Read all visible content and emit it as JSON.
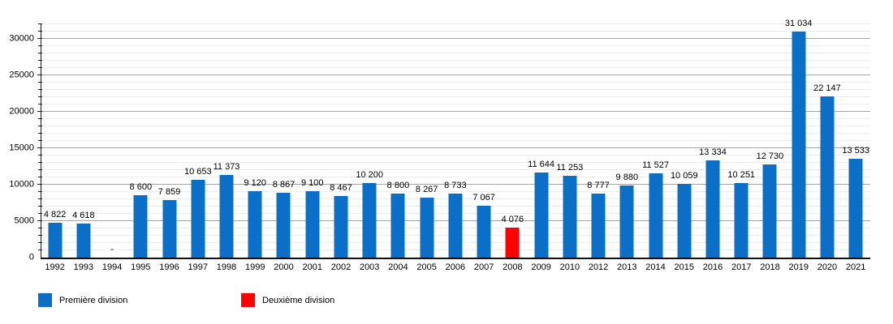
{
  "chart_data": {
    "type": "bar",
    "title": "",
    "xlabel": "",
    "ylabel": "",
    "legend_position": "bottom",
    "grid": true,
    "y_axis": {
      "min": 0,
      "max": 32000,
      "minor_step": 1000,
      "major_step": 5000,
      "tick_labels": [
        "0",
        "5000",
        "10000",
        "15000",
        "20000",
        "25000",
        "30000"
      ]
    },
    "colors": {
      "premiere": "#0b6fc8",
      "deuxieme": "#fe0000",
      "none": "transparent"
    },
    "points": [
      {
        "year": "1992",
        "value": 4822,
        "label": "4 822",
        "division": "premiere"
      },
      {
        "year": "1993",
        "value": 4618,
        "label": "4 618",
        "division": "premiere"
      },
      {
        "year": "1994",
        "value": 0,
        "label": "-",
        "division": "none"
      },
      {
        "year": "1995",
        "value": 8600,
        "label": "8 600",
        "division": "premiere"
      },
      {
        "year": "1996",
        "value": 7859,
        "label": "7 859",
        "division": "premiere"
      },
      {
        "year": "1997",
        "value": 10653,
        "label": "10 653",
        "division": "premiere"
      },
      {
        "year": "1998",
        "value": 11373,
        "label": "11 373",
        "division": "premiere"
      },
      {
        "year": "1999",
        "value": 9120,
        "label": "9 120",
        "division": "premiere"
      },
      {
        "year": "2000",
        "value": 8867,
        "label": "8 867",
        "division": "premiere"
      },
      {
        "year": "2001",
        "value": 9100,
        "label": "9 100",
        "division": "premiere"
      },
      {
        "year": "2002",
        "value": 8467,
        "label": "8 467",
        "division": "premiere"
      },
      {
        "year": "2003",
        "value": 10200,
        "label": "10 200",
        "division": "premiere"
      },
      {
        "year": "2004",
        "value": 8800,
        "label": "8 800",
        "division": "premiere"
      },
      {
        "year": "2005",
        "value": 8267,
        "label": "8 267",
        "division": "premiere"
      },
      {
        "year": "2006",
        "value": 8733,
        "label": "8 733",
        "division": "premiere"
      },
      {
        "year": "2007",
        "value": 7067,
        "label": "7 067",
        "division": "premiere"
      },
      {
        "year": "2008",
        "value": 4076,
        "label": "4 076",
        "division": "deuxieme"
      },
      {
        "year": "2009",
        "value": 11644,
        "label": "11 644",
        "division": "premiere"
      },
      {
        "year": "2010",
        "value": 11253,
        "label": "11 253",
        "division": "premiere"
      },
      {
        "year": "2012",
        "value": 8777,
        "label": "8 777",
        "division": "premiere"
      },
      {
        "year": "2013",
        "value": 9880,
        "label": "9 880",
        "division": "premiere"
      },
      {
        "year": "2014",
        "value": 11527,
        "label": "11 527",
        "division": "premiere"
      },
      {
        "year": "2015",
        "value": 10059,
        "label": "10 059",
        "division": "premiere"
      },
      {
        "year": "2016",
        "value": 13334,
        "label": "13 334",
        "division": "premiere"
      },
      {
        "year": "2017",
        "value": 10251,
        "label": "10 251",
        "division": "premiere"
      },
      {
        "year": "2018",
        "value": 12730,
        "label": "12 730",
        "division": "premiere"
      },
      {
        "year": "2019",
        "value": 31034,
        "label": "31 034",
        "division": "premiere"
      },
      {
        "year": "2020",
        "value": 22147,
        "label": "22 147",
        "division": "premiere"
      },
      {
        "year": "2021",
        "value": 13533,
        "label": "13 533",
        "division": "premiere"
      }
    ]
  },
  "legend": [
    {
      "label": "Première division",
      "color_key": "premiere"
    },
    {
      "label": "Deuxième division",
      "color_key": "deuxieme"
    }
  ]
}
